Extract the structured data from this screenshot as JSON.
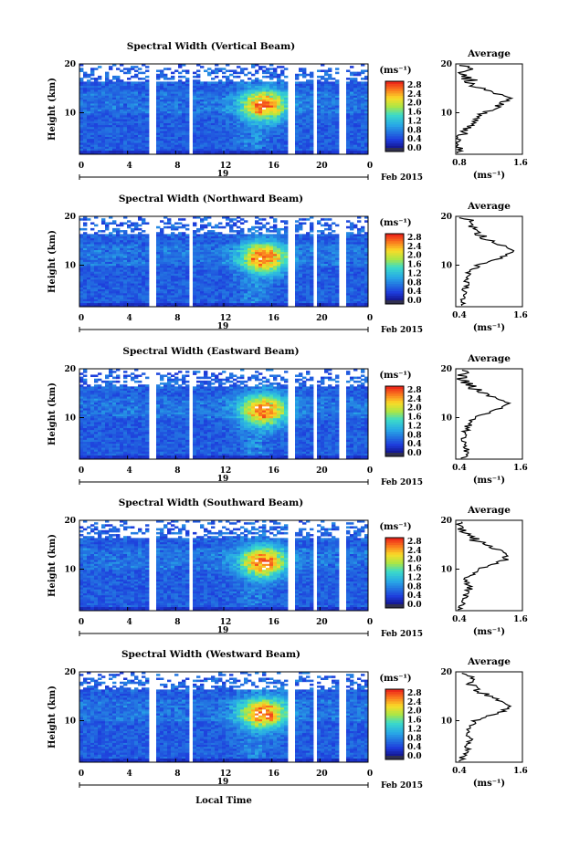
{
  "common": {
    "ylabel": "Height (km)",
    "xlabel": "Local Time",
    "date_label": "Feb 2015",
    "day_label": "19",
    "cb_unit": "(ms⁻¹)",
    "avg_title": "Average",
    "avg_unit": "(ms⁻¹)",
    "x_ticks": [
      "0",
      "4",
      "8",
      "12",
      "16",
      "20",
      "0"
    ],
    "y_ticks": [
      "20",
      "10"
    ],
    "cb_ticks": [
      "2.8",
      "2.4",
      "2.0",
      "1.6",
      "1.2",
      "0.8",
      "0.4",
      "0.0"
    ],
    "colors": {
      "low": "#1f3fd8",
      "mid": "#20c0e0",
      "high": "#f03020",
      "saturated": "#ff2020",
      "line": "#000000"
    }
  },
  "chart_data": [
    {
      "type": "heatmap",
      "title": "Spectral Width (Vertical Beam)",
      "x_range_hours": [
        0,
        24
      ],
      "ylim_km": [
        1.5,
        20
      ],
      "colorbar_range": [
        0.0,
        2.8
      ],
      "average": {
        "xlim": [
          "0.8",
          "1.6"
        ],
        "profile_km": [
          2,
          4,
          6,
          8,
          10,
          11,
          12,
          13,
          14,
          16,
          18,
          20
        ],
        "profile_val": [
          0.85,
          0.82,
          0.9,
          1.0,
          1.15,
          1.3,
          1.35,
          1.5,
          1.3,
          1.0,
          0.95,
          0.9
        ]
      }
    },
    {
      "type": "heatmap",
      "title": "Spectral Width (Northward Beam)",
      "x_range_hours": [
        0,
        24
      ],
      "ylim_km": [
        1.5,
        20
      ],
      "colorbar_range": [
        0.0,
        2.8
      ],
      "average": {
        "xlim": [
          "0.4",
          "1.6"
        ],
        "profile_km": [
          2,
          4,
          6,
          8,
          10,
          11,
          12,
          13,
          14,
          16,
          18,
          20
        ],
        "profile_val": [
          0.55,
          0.55,
          0.6,
          0.6,
          0.8,
          1.1,
          1.3,
          1.4,
          1.25,
          0.85,
          0.7,
          0.55
        ]
      }
    },
    {
      "type": "heatmap",
      "title": "Spectral Width (Eastward Beam)",
      "x_range_hours": [
        0,
        24
      ],
      "ylim_km": [
        1.5,
        20
      ],
      "colorbar_range": [
        0.0,
        2.8
      ],
      "average": {
        "xlim": [
          "0.4",
          "1.6"
        ],
        "profile_km": [
          2,
          4,
          6,
          8,
          10,
          11,
          12,
          13,
          14,
          16,
          18,
          20
        ],
        "profile_val": [
          0.55,
          0.6,
          0.55,
          0.6,
          0.75,
          1.0,
          1.2,
          1.35,
          1.1,
          0.7,
          0.5,
          0.6
        ]
      }
    },
    {
      "type": "heatmap",
      "title": "Spectral Width (Southward Beam)",
      "x_range_hours": [
        0,
        24
      ],
      "ylim_km": [
        1.5,
        20
      ],
      "colorbar_range": [
        0.0,
        2.8
      ],
      "average": {
        "xlim": [
          "0.4",
          "1.6"
        ],
        "profile_km": [
          2,
          4,
          6,
          8,
          10,
          11,
          12,
          13,
          14,
          16,
          18,
          20
        ],
        "profile_val": [
          0.5,
          0.55,
          0.65,
          0.6,
          0.8,
          1.1,
          1.3,
          1.3,
          1.15,
          0.75,
          0.55,
          0.5
        ]
      }
    },
    {
      "type": "heatmap",
      "title": "Spectral Width (Westward Beam)",
      "x_range_hours": [
        0,
        24
      ],
      "ylim_km": [
        1.5,
        20
      ],
      "colorbar_range": [
        0.0,
        2.8
      ],
      "average": {
        "xlim": [
          "0.4",
          "1.6"
        ],
        "profile_km": [
          2,
          4,
          6,
          8,
          10,
          11,
          12,
          13,
          14,
          16,
          18,
          20
        ],
        "profile_val": [
          0.5,
          0.6,
          0.65,
          0.6,
          0.75,
          1.0,
          1.25,
          1.4,
          1.2,
          0.8,
          0.65,
          0.6
        ]
      }
    }
  ]
}
